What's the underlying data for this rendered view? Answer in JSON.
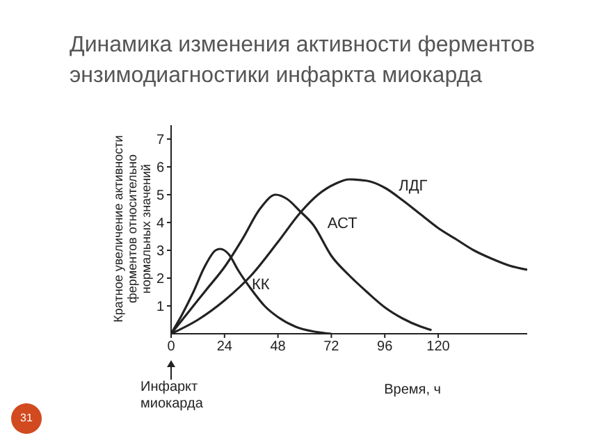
{
  "chart_data": {
    "type": "line",
    "title": "Динамика изменения активности ферментов энзимодиагностики инфаркта миокарда",
    "xlabel": "Время, ч",
    "ylabel": "Кратное увеличение активности ферментов относительно нормальных значений",
    "xlim": [
      0,
      160
    ],
    "xticks": [
      0,
      24,
      48,
      72,
      96,
      120
    ],
    "ylim": [
      0,
      7.5
    ],
    "yticks": [
      1,
      2,
      3,
      4,
      5,
      6,
      7
    ],
    "grid": false,
    "legend": false,
    "marker": "none",
    "line_style": "solid",
    "series": [
      {
        "name": "КК",
        "color": "#222222",
        "x": [
          0,
          5,
          10,
          15,
          20,
          22,
          26,
          30,
          36,
          42,
          48,
          56,
          64,
          72
        ],
        "values": [
          0,
          0.7,
          1.5,
          2.4,
          3.0,
          3.05,
          2.85,
          2.3,
          1.6,
          1.0,
          0.6,
          0.25,
          0.08,
          0
        ]
      },
      {
        "name": "АСТ",
        "color": "#222222",
        "x": [
          0,
          8,
          16,
          24,
          32,
          40,
          47,
          52,
          58,
          64,
          72,
          80,
          88,
          96,
          104,
          112,
          117
        ],
        "values": [
          0,
          0.8,
          1.6,
          2.4,
          3.4,
          4.5,
          5.0,
          4.85,
          4.4,
          3.9,
          2.8,
          2.1,
          1.5,
          0.95,
          0.55,
          0.26,
          0.13
        ]
      },
      {
        "name": "ЛДГ",
        "color": "#222222",
        "x": [
          0,
          12,
          24,
          36,
          48,
          58,
          66,
          74,
          80,
          88,
          96,
          104,
          112,
          120,
          128,
          136,
          144,
          152,
          160
        ],
        "values": [
          0,
          0.5,
          1.2,
          2.1,
          3.3,
          4.35,
          5.0,
          5.4,
          5.55,
          5.5,
          5.25,
          4.8,
          4.3,
          3.8,
          3.4,
          3.0,
          2.7,
          2.45,
          2.3
        ]
      }
    ],
    "annotations": [
      {
        "text": "Инфаркт миокарда",
        "x": 0
      },
      "31"
    ]
  }
}
